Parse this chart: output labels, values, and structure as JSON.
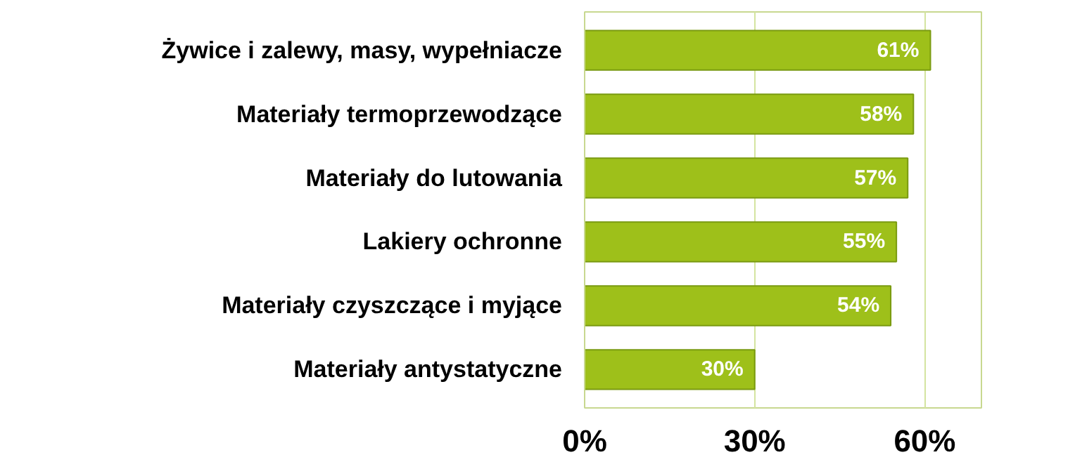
{
  "chart_data": {
    "type": "bar",
    "orientation": "horizontal",
    "categories": [
      "Żywice i zalewy, masy, wypełniacze",
      "Materiały termoprzewodzące",
      "Materiały do lutowania",
      "Lakiery ochronne",
      "Materiały czyszczące i myjące",
      "Materiały antystatyczne"
    ],
    "values": [
      61,
      58,
      57,
      55,
      54,
      30
    ],
    "value_labels": [
      "61%",
      "58%",
      "57%",
      "55%",
      "54%",
      "30%"
    ],
    "color": "#9ec01a",
    "xlim": [
      0,
      70
    ],
    "xticks": [
      {
        "value": 0,
        "label": "0%"
      },
      {
        "value": 30,
        "label": "30%"
      },
      {
        "value": 60,
        "label": "60%"
      }
    ],
    "grid": "x"
  }
}
